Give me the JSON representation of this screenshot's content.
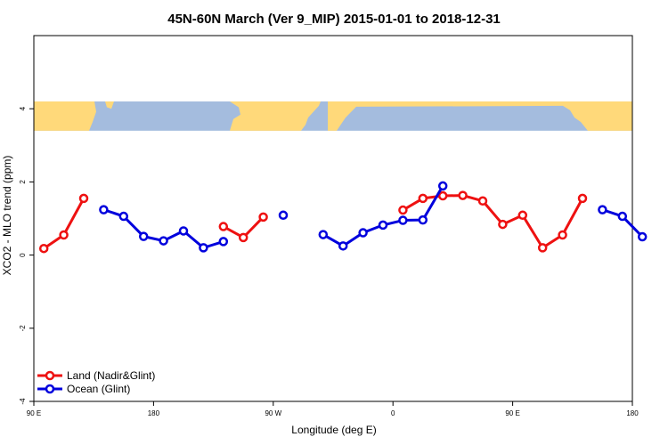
{
  "chart_data": {
    "type": "line",
    "title": "45N-60N March (Ver 9_MIP)   2015-01-01 to 2018-12-31",
    "xlabel": "Longitude (deg E)",
    "ylabel": "XCO2 - MLO trend (ppm)",
    "xlim": [
      90,
      540
    ],
    "ylim": [
      -4,
      6
    ],
    "x_ticks": [
      {
        "value": 90,
        "label": "90 E"
      },
      {
        "value": 180,
        "label": "180"
      },
      {
        "value": 270,
        "label": "90 W"
      },
      {
        "value": 360,
        "label": "0"
      },
      {
        "value": 450,
        "label": "90 E"
      },
      {
        "value": 540,
        "label": "180"
      }
    ],
    "y_ticks": [
      {
        "value": -4,
        "label": "-4"
      },
      {
        "value": -2,
        "label": "-2"
      },
      {
        "value": 0,
        "label": "0"
      },
      {
        "value": 2,
        "label": "2"
      },
      {
        "value": 4,
        "label": "4"
      }
    ],
    "map_band": {
      "ymin": 3.4,
      "ymax": 4.2,
      "land_color": "#ffd97a",
      "ocean_color": "#a4bcde"
    },
    "legend_position": "bottom-left",
    "series": [
      {
        "name": "Land (Nadir&Glint)",
        "color": "#ee1111",
        "segments": [
          [
            [
              97.5,
              0.18
            ],
            [
              112.5,
              0.55
            ],
            [
              127.5,
              1.55
            ]
          ],
          [
            [
              232.5,
              0.78
            ],
            [
              247.5,
              0.48
            ],
            [
              262.5,
              1.04
            ]
          ],
          [
            [
              367.5,
              1.23
            ],
            [
              382.5,
              1.55
            ],
            [
              397.5,
              1.62
            ],
            [
              412.5,
              1.63
            ],
            [
              427.5,
              1.48
            ],
            [
              442.5,
              0.84
            ],
            [
              457.5,
              1.09
            ],
            [
              472.5,
              0.2
            ],
            [
              487.5,
              0.55
            ],
            [
              502.5,
              1.55
            ]
          ]
        ]
      },
      {
        "name": "Ocean (Glint)",
        "color": "#0000dd",
        "segments": [
          [
            [
              142.5,
              1.24
            ],
            [
              157.5,
              1.06
            ],
            [
              172.5,
              0.51
            ],
            [
              187.5,
              0.39
            ],
            [
              202.5,
              0.66
            ],
            [
              217.5,
              0.2
            ],
            [
              232.5,
              0.37
            ]
          ],
          [
            [
              277.5,
              1.09
            ]
          ],
          [
            [
              307.5,
              0.56
            ],
            [
              322.5,
              0.25
            ],
            [
              337.5,
              0.61
            ],
            [
              352.5,
              0.82
            ],
            [
              367.5,
              0.95
            ],
            [
              382.5,
              0.96
            ],
            [
              397.5,
              1.89
            ]
          ],
          [
            [
              517.5,
              1.24
            ],
            [
              532.5,
              1.06
            ],
            [
              547.5,
              0.5
            ]
          ]
        ]
      }
    ]
  }
}
